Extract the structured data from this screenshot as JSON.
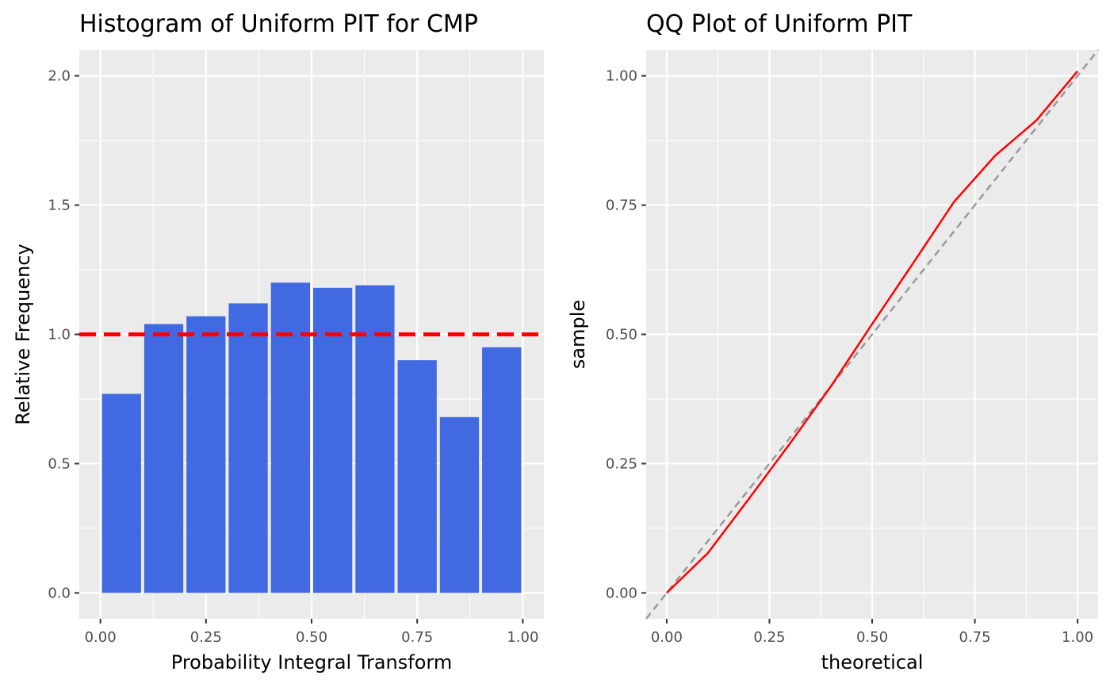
{
  "chart_data": [
    {
      "type": "bar",
      "title": "Histogram of Uniform PIT for CMP",
      "xlabel": "Probability Integral Transform",
      "ylabel": "Relative Frequency",
      "xlim": [
        -0.05,
        1.05
      ],
      "ylim": [
        -0.1,
        2.1
      ],
      "x_ticks": [
        "0.00",
        "0.25",
        "0.50",
        "0.75",
        "1.00"
      ],
      "x_tick_values": [
        0,
        0.25,
        0.5,
        0.75,
        1
      ],
      "y_ticks": [
        "0.0",
        "0.5",
        "1.0",
        "1.5",
        "2.0"
      ],
      "y_tick_values": [
        0,
        0.5,
        1,
        1.5,
        2
      ],
      "bin_width": 0.1,
      "bin_starts": [
        0.0,
        0.1,
        0.2,
        0.3,
        0.4,
        0.5,
        0.6,
        0.7,
        0.8,
        0.9
      ],
      "values": [
        0.77,
        1.04,
        1.07,
        1.12,
        1.2,
        1.18,
        1.19,
        0.9,
        0.68,
        0.95
      ],
      "bar_color": "#4169E1",
      "reference_line": {
        "y": 1.0,
        "color": "#FF0000",
        "style": "dashed"
      },
      "grid": true
    },
    {
      "type": "line",
      "title": "QQ Plot of Uniform PIT",
      "xlabel": "theoretical",
      "ylabel": "sample",
      "xlim": [
        -0.05,
        1.05
      ],
      "ylim": [
        -0.05,
        1.05
      ],
      "x_ticks": [
        "0.00",
        "0.25",
        "0.50",
        "0.75",
        "1.00"
      ],
      "x_tick_values": [
        0,
        0.25,
        0.5,
        0.75,
        1
      ],
      "y_ticks": [
        "0.00",
        "0.25",
        "0.50",
        "0.75",
        "1.00"
      ],
      "y_tick_values": [
        0,
        0.25,
        0.5,
        0.75,
        1
      ],
      "series": [
        {
          "x": [
            0.0,
            0.1,
            0.2,
            0.3,
            0.4,
            0.5,
            0.6,
            0.7,
            0.8,
            0.9,
            1.0
          ],
          "y": [
            0.0,
            0.077,
            0.182,
            0.289,
            0.4,
            0.52,
            0.638,
            0.757,
            0.846,
            0.914,
            1.009
          ],
          "color": "#FF0000"
        }
      ],
      "reference_line": {
        "slope": 1,
        "intercept": 0,
        "color": "#999999",
        "style": "dashed"
      },
      "grid": true
    }
  ]
}
